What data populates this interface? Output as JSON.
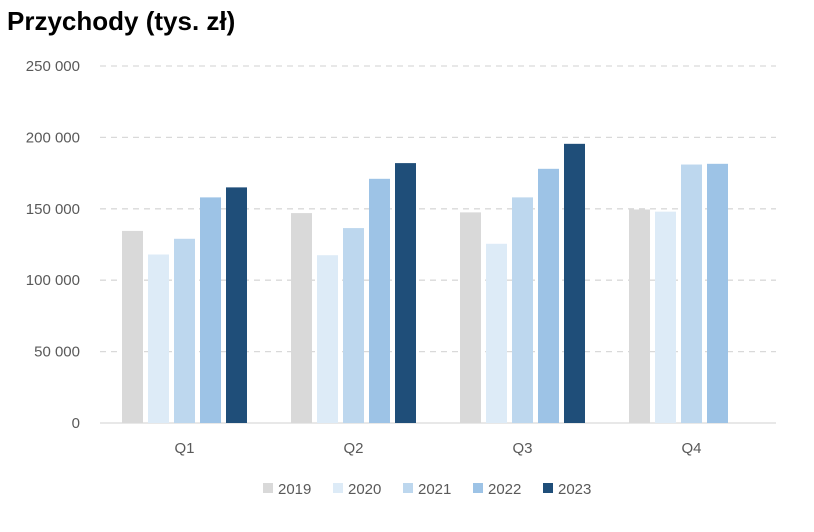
{
  "chart_data": {
    "type": "bar",
    "title": "Przychody (tys. zł)",
    "xlabel": "",
    "ylabel": "",
    "categories": [
      "Q1",
      "Q2",
      "Q3",
      "Q4"
    ],
    "y_ticks": [
      0,
      50000,
      100000,
      150000,
      200000,
      250000
    ],
    "y_tick_labels": [
      "0",
      "50 000",
      "100 000",
      "150 000",
      "200 000",
      "250 000"
    ],
    "ylim": [
      0,
      250000
    ],
    "grid": true,
    "legend_position": "bottom",
    "series": [
      {
        "name": "2019",
        "color": "#d9d9d9",
        "values": [
          134500,
          147000,
          147500,
          149500
        ]
      },
      {
        "name": "2020",
        "color": "#ddebf7",
        "values": [
          118000,
          117500,
          125500,
          148000
        ]
      },
      {
        "name": "2021",
        "color": "#bdd7ee",
        "values": [
          129000,
          136500,
          158000,
          181000
        ]
      },
      {
        "name": "2022",
        "color": "#9dc3e6",
        "values": [
          158000,
          171000,
          178000,
          181500
        ]
      },
      {
        "name": "2023",
        "color": "#1f4e79",
        "values": [
          165000,
          182000,
          195500,
          null
        ]
      }
    ]
  }
}
